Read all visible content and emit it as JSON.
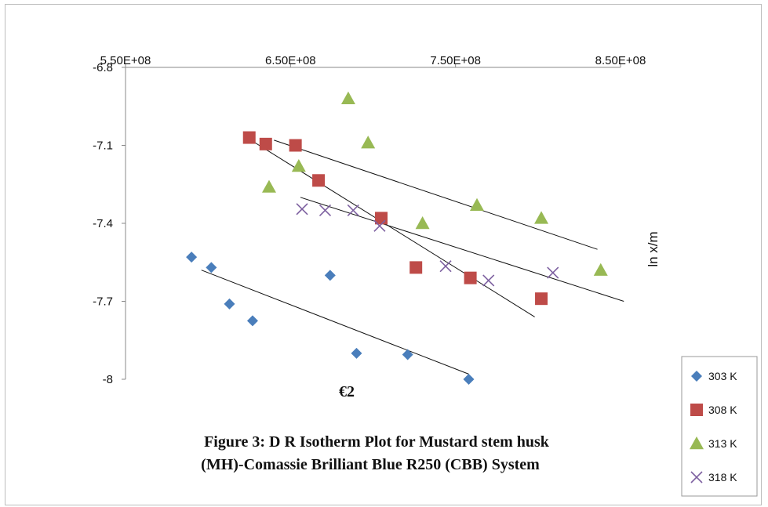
{
  "chart_data": {
    "type": "scatter",
    "xlabel": "€2",
    "ylabel": "ln x/m",
    "caption_lines": [
      "Figure 3: D R  Isotherm Plot for Mustard stem husk",
      "(MH)-Comassie Brilliant Blue R250 (CBB) System"
    ],
    "xlim": [
      550000000,
      850000000
    ],
    "ylim": [
      -8,
      -6.8
    ],
    "x_ticks": [
      550000000,
      650000000,
      750000000,
      850000000
    ],
    "x_tick_labels": [
      "5.50E+08",
      "6.50E+08",
      "7.50E+08",
      "8.50E+08"
    ],
    "y_ticks": [
      -6.8,
      -7.1,
      -7.4,
      -7.7,
      -8
    ],
    "y_tick_labels": [
      "-6.8",
      "-7.1",
      "-7.4",
      "-7.7",
      "-8"
    ],
    "x_axis_position": "top",
    "legend_position": "right",
    "grid": false,
    "series": [
      {
        "name": "303 K",
        "marker": "diamond",
        "color": "#4a7ebb",
        "x": [
          590000000,
          602000000,
          613000000,
          627000000,
          674000000,
          690000000,
          721000000,
          758000000
        ],
        "y": [
          -7.53,
          -7.57,
          -7.71,
          -7.775,
          -7.6,
          -7.9,
          -7.905,
          -8.0
        ],
        "trend": [
          [
            596000000,
            -7.58
          ],
          [
            758000000,
            -7.98
          ]
        ]
      },
      {
        "name": "308 K",
        "marker": "square",
        "color": "#be4b48",
        "x": [
          625000000,
          635000000,
          653000000,
          667000000,
          705000000,
          726000000,
          759000000,
          802000000
        ],
        "y": [
          -7.07,
          -7.095,
          -7.1,
          -7.235,
          -7.38,
          -7.57,
          -7.61,
          -7.69
        ],
        "trend": [
          [
            626000000,
            -7.08
          ],
          [
            798000000,
            -7.76
          ]
        ]
      },
      {
        "name": "313 K",
        "marker": "triangle",
        "color": "#98b954",
        "x": [
          637000000,
          655000000,
          685000000,
          697000000,
          730000000,
          763000000,
          802000000,
          838000000
        ],
        "y": [
          -7.26,
          -7.18,
          -6.92,
          -7.09,
          -7.4,
          -7.33,
          -7.38,
          -7.58
        ],
        "trend": [
          [
            640000000,
            -7.08
          ],
          [
            836000000,
            -7.5
          ]
        ]
      },
      {
        "name": "318 K",
        "marker": "x",
        "color": "#7d60a0",
        "x": [
          657000000,
          671000000,
          688000000,
          704000000,
          744000000,
          770000000,
          809000000
        ],
        "y": [
          -7.345,
          -7.35,
          -7.35,
          -7.41,
          -7.565,
          -7.62,
          -7.59
        ],
        "trend": [
          [
            656000000,
            -7.3
          ],
          [
            852000000,
            -7.7
          ]
        ]
      }
    ]
  }
}
